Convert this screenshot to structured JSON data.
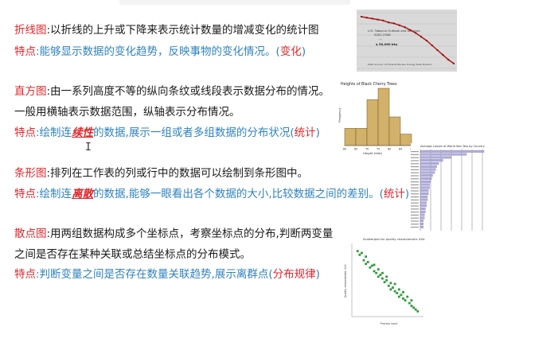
{
  "sections": {
    "line_chart": {
      "term": "折线图",
      "desc": ":以折线的上升或下降来表示统计数量的增减变化的统计图",
      "feature_label": "特点",
      "feature_text": ":能够显示数据的变化趋势，反映事物的变化情况。(",
      "feature_key": "变化",
      "feature_end": ")"
    },
    "histogram": {
      "term": "直方图",
      "desc": ":由一系列高度不等的纵向条纹或线段表示数据分布的情况。",
      "desc2": "一般用横轴表示数据范围，纵轴表示分布情况。",
      "feature_label": "特点",
      "feature_a": ":绘制连",
      "feature_em": "续性",
      "feature_b": "的数据,展示一组或者多组数据的分布状况(",
      "feature_key": "统计",
      "feature_end": ")"
    },
    "bar_chart": {
      "term": "条形图",
      "desc": ":排列在工作表的列或行中的数据可以绘制到条形图中。",
      "feature_label": "特点",
      "feature_a": ":绘制连",
      "feature_em": "离散",
      "feature_b": "的数据,能够一眼看出各个数据的大小,比较数据之间的差别。(",
      "feature_key": "统计",
      "feature_end": ")"
    },
    "scatter": {
      "term": "散点图",
      "desc": ":用两组数据构成多个坐标点，考察坐标点的分布,判断两变量",
      "desc2": "之间是否存在某种关联或总结坐标点的分布模式。",
      "feature_label": "特点",
      "feature_text": ":判断变量之间是否存在数量关联趋势,展示离群点(",
      "feature_key": "分布规律",
      "feature_end": ")"
    }
  },
  "thumbnails": {
    "line": {
      "annotation_lines": [
        "U.S. Tobacco Outlook and Services",
        "2001-2008",
        "—",
        "$ 50,000 btu"
      ],
      "footer": "Data Source: US Federal Bureau Energy Data Division"
    },
    "histogram": {
      "title": "Heights of Black Cherry Trees",
      "xlabel": "Height (feet)",
      "ylabel": "Frequency",
      "ticks": [
        "60",
        "65",
        "70",
        "75",
        "80",
        "85",
        "90"
      ]
    },
    "bar": {
      "title": "Average Losses of World War Two by Country"
    },
    "scatter": {
      "title": "Scatterplot for quality characteristic XXX",
      "xlabel": "Process input",
      "ylabel": "Quality characteristic XXX"
    }
  },
  "chart_data": [
    {
      "type": "line",
      "x": [
        1,
        2,
        3,
        4,
        5,
        6,
        7,
        8,
        9,
        10,
        11,
        12,
        13,
        14,
        15,
        16,
        17,
        18
      ],
      "y": [
        95,
        94,
        93,
        92,
        91,
        89,
        88,
        86,
        84,
        81,
        78,
        74,
        70,
        65,
        60,
        55,
        50,
        46
      ]
    },
    {
      "type": "bar",
      "title": "Heights of Black Cherry Trees",
      "xlabel": "Height (feet)",
      "ylabel": "Frequency",
      "categories": [
        "60-65",
        "65-70",
        "70-75",
        "75-80",
        "80-85",
        "85-90"
      ],
      "values": [
        3,
        3,
        8,
        10,
        5,
        2
      ],
      "ylim": [
        0,
        10
      ]
    },
    {
      "type": "bar",
      "title": "Average Losses of World War Two by Country",
      "values": [
        62,
        45,
        30,
        22,
        18,
        16,
        15,
        14,
        12,
        11,
        10,
        9,
        9,
        8,
        8,
        7,
        7,
        6,
        6,
        5,
        5,
        4,
        4,
        3,
        3,
        3
      ]
    },
    {
      "type": "scatter",
      "title": "Scatterplot for quality characteristic XXX",
      "xlabel": "Process input",
      "ylabel": "Quality characteristic XXX",
      "x": [
        2,
        3,
        4,
        5,
        6,
        6,
        7,
        8,
        9,
        10,
        10,
        11,
        12,
        12,
        13,
        14,
        14,
        15,
        16,
        16,
        17,
        18,
        18,
        19,
        20,
        20,
        21,
        22,
        22,
        23,
        24,
        24,
        25,
        26,
        27,
        28,
        28,
        29,
        30,
        31
      ],
      "y": [
        90,
        86,
        88,
        80,
        84,
        76,
        78,
        72,
        74,
        68,
        75,
        66,
        70,
        62,
        64,
        60,
        66,
        56,
        58,
        62,
        52,
        55,
        48,
        50,
        46,
        54,
        44,
        48,
        40,
        42,
        45,
        38,
        36,
        40,
        33,
        30,
        36,
        28,
        26,
        24
      ]
    }
  ],
  "colors": {
    "term": "#e0262b",
    "feature": "#2f83c2",
    "bar_fill": "#b0acd9",
    "hist_fill": "#d2b16a",
    "scatter": "#2f9a36"
  }
}
